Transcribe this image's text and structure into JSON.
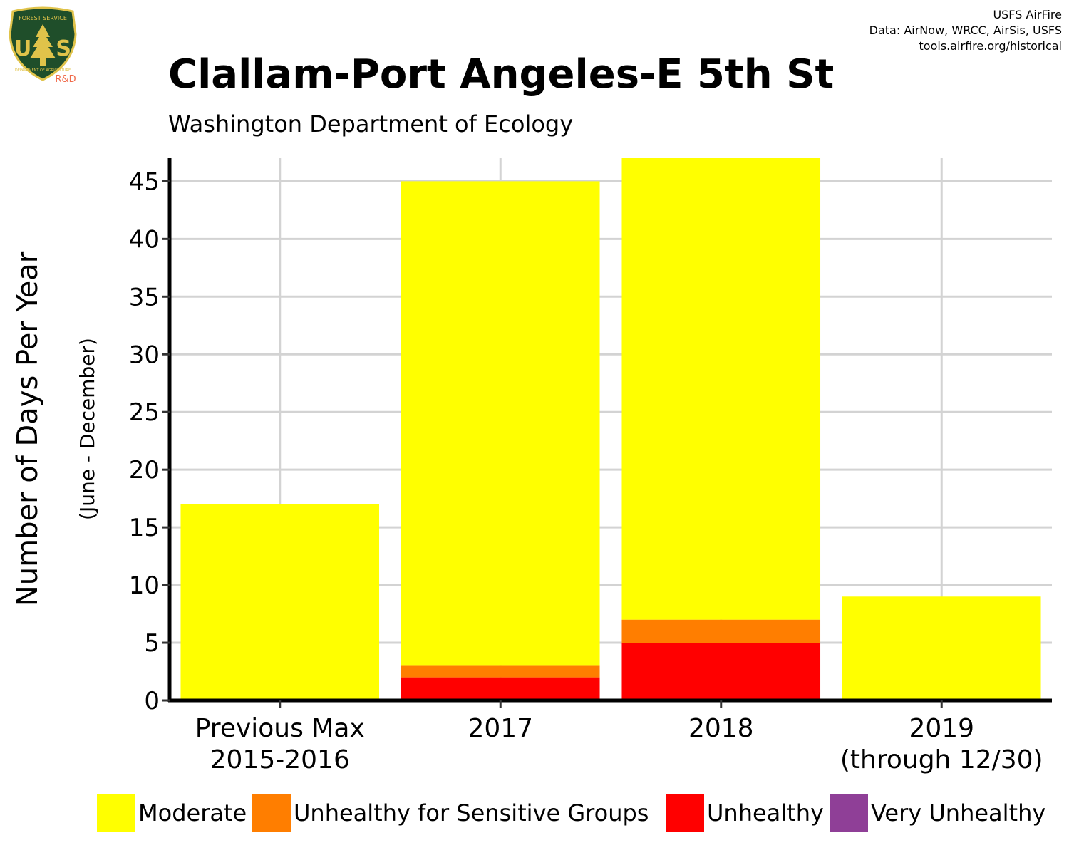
{
  "credits": {
    "line1": "USFS AirFire",
    "line2": "Data: AirNow, WRCC, AirSis, USFS",
    "line3": "tools.airfire.org/historical"
  },
  "logo": {
    "top_text": "FOREST SERVICE",
    "letters": "US",
    "bottom_text": "DEPARTMENT OF AGRICULTURE",
    "badge": "R&D"
  },
  "colors": {
    "moderate": "#FFFF00",
    "usg": "#FF7E00",
    "unhealthy": "#FF0000",
    "very_unhealthy": "#8F3F97",
    "grid": "#d3d3d3",
    "axis": "#000000"
  },
  "chart_data": {
    "type": "bar",
    "stacked": true,
    "title": "Clallam-Port Angeles-E 5th St",
    "subtitle": "Washington Department of Ecology",
    "ylabel": "Number of Days Per Year",
    "ylabel2": "(June - December)",
    "categories": [
      [
        "Previous Max",
        "2015-2016"
      ],
      [
        "2017"
      ],
      [
        "2018"
      ],
      [
        "2019",
        "(through 12/30)"
      ]
    ],
    "series": [
      {
        "name": "Unhealthy",
        "color": "#FF0000",
        "values": [
          0,
          2,
          5,
          0
        ]
      },
      {
        "name": "Unhealthy for Sensitive Groups",
        "color": "#FF7E00",
        "values": [
          0,
          1,
          2,
          0
        ]
      },
      {
        "name": "Moderate",
        "color": "#FFFF00",
        "values": [
          17,
          42,
          40,
          9
        ]
      },
      {
        "name": "Very Unhealthy",
        "color": "#8F3F97",
        "values": [
          0,
          0,
          0,
          0
        ]
      }
    ],
    "ylim": [
      0,
      47
    ],
    "yticks": [
      0,
      5,
      10,
      15,
      20,
      25,
      30,
      35,
      40,
      45
    ],
    "grid": true,
    "legend": {
      "position": "bottom",
      "order": [
        "Moderate",
        "Unhealthy for Sensitive Groups",
        "Unhealthy",
        "Very Unhealthy"
      ]
    }
  }
}
